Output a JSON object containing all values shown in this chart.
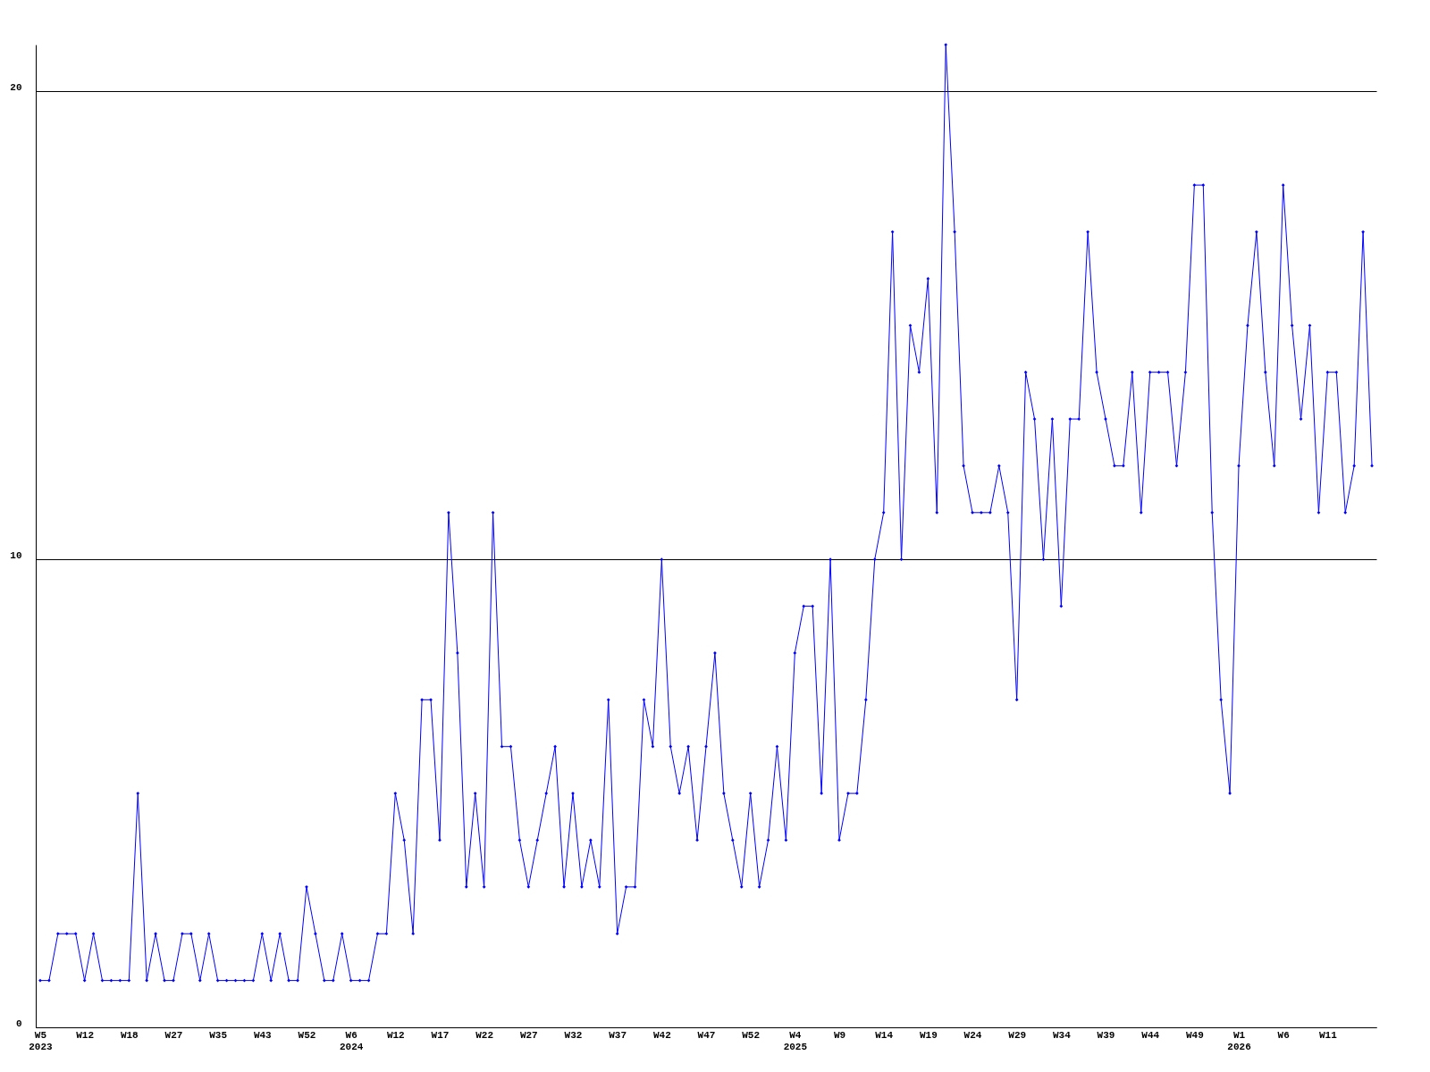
{
  "chart_data": {
    "type": "line",
    "categories": [
      "W5\n2023",
      null,
      null,
      null,
      null,
      "W12",
      null,
      null,
      null,
      null,
      "W18",
      null,
      null,
      null,
      null,
      "W27",
      null,
      null,
      null,
      null,
      "W35",
      null,
      null,
      null,
      null,
      "W43",
      null,
      null,
      null,
      null,
      "W52",
      null,
      null,
      null,
      null,
      "W6\n2024",
      null,
      null,
      null,
      null,
      "W12",
      null,
      null,
      null,
      null,
      "W17",
      null,
      null,
      null,
      null,
      "W22",
      null,
      null,
      null,
      null,
      "W27",
      null,
      null,
      null,
      null,
      "W32",
      null,
      null,
      null,
      null,
      "W37",
      null,
      null,
      null,
      null,
      "W42",
      null,
      null,
      null,
      null,
      "W47",
      null,
      null,
      null,
      null,
      "W52",
      null,
      null,
      null,
      null,
      "W4\n2025",
      null,
      null,
      null,
      null,
      "W9",
      null,
      null,
      null,
      null,
      "W14",
      null,
      null,
      null,
      null,
      "W19",
      null,
      null,
      null,
      null,
      "W24",
      null,
      null,
      null,
      null,
      "W29",
      null,
      null,
      null,
      null,
      "W34",
      null,
      null,
      null,
      null,
      "W39",
      null,
      null,
      null,
      null,
      "W44",
      null,
      null,
      null,
      null,
      "W49",
      null,
      null,
      null,
      null,
      "W1\n2026",
      null,
      null,
      null,
      null,
      "W6",
      null,
      null,
      null,
      null,
      "W11",
      null,
      null,
      null,
      null,
      null
    ],
    "series": [
      {
        "color": "#0000ff",
        "values": [
          1,
          1,
          2,
          2,
          2,
          1,
          2,
          1,
          1,
          1,
          1,
          5,
          1,
          2,
          1,
          1,
          2,
          2,
          1,
          2,
          1,
          1,
          1,
          1,
          1,
          2,
          1,
          2,
          1,
          1,
          3,
          2,
          1,
          1,
          2,
          1,
          1,
          1,
          2,
          2,
          5,
          4,
          2,
          7,
          7,
          4,
          11,
          8,
          3,
          5,
          3,
          11,
          6,
          6,
          4,
          3,
          4,
          5,
          6,
          3,
          5,
          3,
          4,
          3,
          7,
          2,
          3,
          3,
          7,
          6,
          10,
          6,
          5,
          6,
          4,
          6,
          8,
          5,
          4,
          3,
          5,
          3,
          4,
          6,
          4,
          8,
          9,
          9,
          5,
          10,
          4,
          5,
          5,
          7,
          10,
          11,
          17,
          10,
          15,
          14,
          16,
          11,
          21,
          17,
          12,
          11,
          11,
          11,
          12,
          11,
          7,
          14,
          13,
          10,
          13,
          9,
          13,
          13,
          17,
          14,
          13,
          12,
          12,
          14,
          11,
          14,
          14,
          14,
          12,
          14,
          18,
          18,
          11,
          7,
          5,
          12,
          15,
          17,
          14,
          12,
          18,
          15,
          13,
          15,
          11,
          14,
          14,
          11,
          12,
          17,
          12
        ]
      }
    ],
    "ylim": [
      0,
      21
    ],
    "yticks": [
      0,
      10,
      20
    ],
    "grid": "y",
    "marker": "diamond",
    "line_style": "solid"
  }
}
